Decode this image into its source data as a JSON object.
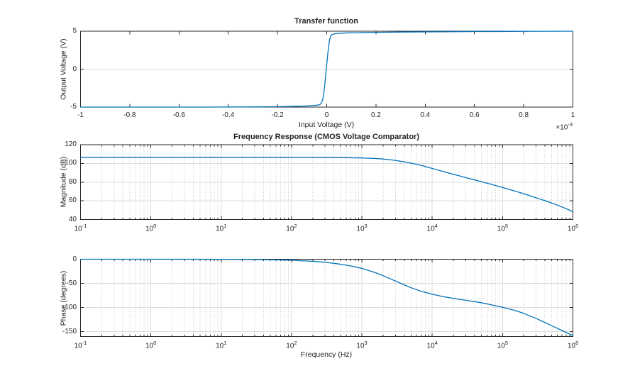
{
  "style": {
    "background": "#ffffff",
    "line_color": "#0072bd",
    "axis_color": "#252525",
    "text_color": "#252525",
    "grid_color": "#dcdcdc",
    "minor_grid_color": "#c6c6c6"
  },
  "chart_data": [
    {
      "id": "transfer",
      "type": "line",
      "title": "Transfer function",
      "xlabel": "Input Voltage (V)",
      "ylabel": "Output Voltage (V)",
      "x_mult_base": "×10",
      "x_mult_exp": "-3",
      "xscale": "linear",
      "xlim": [
        -1,
        1
      ],
      "ylim": [
        -5,
        5
      ],
      "xticks": [
        -1,
        -0.8,
        -0.6,
        -0.4,
        -0.2,
        0,
        0.2,
        0.4,
        0.6,
        0.8,
        1
      ],
      "yticks": [
        5,
        0,
        -5
      ],
      "grid_y": [
        0
      ],
      "points": [
        [
          -1,
          -5
        ],
        [
          -0.7,
          -5
        ],
        [
          -0.5,
          -5
        ],
        [
          -0.35,
          -4.98
        ],
        [
          -0.25,
          -4.96
        ],
        [
          -0.2,
          -4.94
        ],
        [
          -0.15,
          -4.91
        ],
        [
          -0.12,
          -4.89
        ],
        [
          -0.1,
          -4.87
        ],
        [
          -0.08,
          -4.84
        ],
        [
          -0.06,
          -4.8
        ],
        [
          -0.05,
          -4.78
        ],
        [
          -0.04,
          -4.75
        ],
        [
          -0.032,
          -4.72
        ],
        [
          -0.027,
          -4.65
        ],
        [
          -0.023,
          -4.5
        ],
        [
          -0.019,
          -4.25
        ],
        [
          -0.015,
          -3.8
        ],
        [
          -0.012,
          -3.2
        ],
        [
          -0.009,
          -2.4
        ],
        [
          -0.006,
          -1.4
        ],
        [
          -0.003,
          -0.4
        ],
        [
          0,
          0.6
        ],
        [
          0.003,
          1.6
        ],
        [
          0.006,
          2.5
        ],
        [
          0.009,
          3.3
        ],
        [
          0.012,
          3.9
        ],
        [
          0.015,
          4.25
        ],
        [
          0.018,
          4.45
        ],
        [
          0.022,
          4.55
        ],
        [
          0.028,
          4.62
        ],
        [
          0.035,
          4.67
        ],
        [
          0.05,
          4.72
        ],
        [
          0.07,
          4.76
        ],
        [
          0.1,
          4.79
        ],
        [
          0.15,
          4.82
        ],
        [
          0.2,
          4.85
        ],
        [
          0.3,
          4.89
        ],
        [
          0.4,
          4.91
        ],
        [
          0.5,
          4.93
        ],
        [
          0.6,
          4.95
        ],
        [
          0.7,
          4.96
        ],
        [
          0.8,
          4.98
        ],
        [
          0.9,
          4.99
        ],
        [
          1,
          5
        ]
      ]
    },
    {
      "id": "magnitude",
      "type": "line",
      "title": "Frequency Response (CMOS Voltage Comparator)",
      "ylabel": "Magnitude (dB)",
      "xscale": "log",
      "xlim_exp": [
        -1,
        6
      ],
      "ylim": [
        40,
        120
      ],
      "yticks": [
        40,
        60,
        80,
        100,
        120
      ],
      "grid_y": [
        60,
        80,
        100
      ],
      "points": [
        [
          0.1,
          106.5
        ],
        [
          0.5,
          106.5
        ],
        [
          1,
          106.5
        ],
        [
          5,
          106.5
        ],
        [
          10,
          106.5
        ],
        [
          50,
          106.5
        ],
        [
          100,
          106.4
        ],
        [
          200,
          106.4
        ],
        [
          300,
          106.3
        ],
        [
          500,
          106.2
        ],
        [
          700,
          106.0
        ],
        [
          1000,
          105.8
        ],
        [
          1500,
          105.3
        ],
        [
          2000,
          104.7
        ],
        [
          3000,
          103.2
        ],
        [
          4000,
          101.7
        ],
        [
          5000,
          100.3
        ],
        [
          7000,
          97.8
        ],
        [
          10000,
          94.6
        ],
        [
          15000,
          90.9
        ],
        [
          20000,
          88.3
        ],
        [
          30000,
          84.8
        ],
        [
          50000,
          80.4
        ],
        [
          70000,
          77.5
        ],
        [
          100000,
          74.2
        ],
        [
          150000,
          70.4
        ],
        [
          200000,
          67.6
        ],
        [
          300000,
          63.2
        ],
        [
          400000,
          60.2
        ],
        [
          500000,
          57.6
        ],
        [
          600000,
          55.4
        ],
        [
          700000,
          53.4
        ],
        [
          850000,
          50.8
        ],
        [
          1000000,
          48.2
        ]
      ]
    },
    {
      "id": "phase",
      "type": "line",
      "xlabel": "Frequency (Hz)",
      "ylabel": "Phase (degrees)",
      "xscale": "log",
      "xlim_exp": [
        -1,
        6
      ],
      "ylim": [
        -160,
        0
      ],
      "yticks": [
        0,
        -50,
        -100,
        -150
      ],
      "grid_y": [
        -50,
        -100,
        -150
      ],
      "points": [
        [
          0.1,
          0
        ],
        [
          1,
          0
        ],
        [
          5,
          -0.1
        ],
        [
          10,
          -0.2
        ],
        [
          30,
          -0.6
        ],
        [
          60,
          -1.2
        ],
        [
          100,
          -2.1
        ],
        [
          200,
          -4.2
        ],
        [
          300,
          -6.3
        ],
        [
          500,
          -10.4
        ],
        [
          700,
          -14
        ],
        [
          1000,
          -19
        ],
        [
          1500,
          -27
        ],
        [
          2000,
          -34
        ],
        [
          3000,
          -45
        ],
        [
          4000,
          -53
        ],
        [
          5000,
          -59
        ],
        [
          7000,
          -66.5
        ],
        [
          10000,
          -72.5
        ],
        [
          15000,
          -78
        ],
        [
          20000,
          -81
        ],
        [
          30000,
          -85
        ],
        [
          50000,
          -90
        ],
        [
          70000,
          -94.5
        ],
        [
          100000,
          -99.5
        ],
        [
          150000,
          -106
        ],
        [
          200000,
          -112
        ],
        [
          300000,
          -122.5
        ],
        [
          500000,
          -137.5
        ],
        [
          700000,
          -147.5
        ],
        [
          1000000,
          -158
        ]
      ]
    }
  ]
}
